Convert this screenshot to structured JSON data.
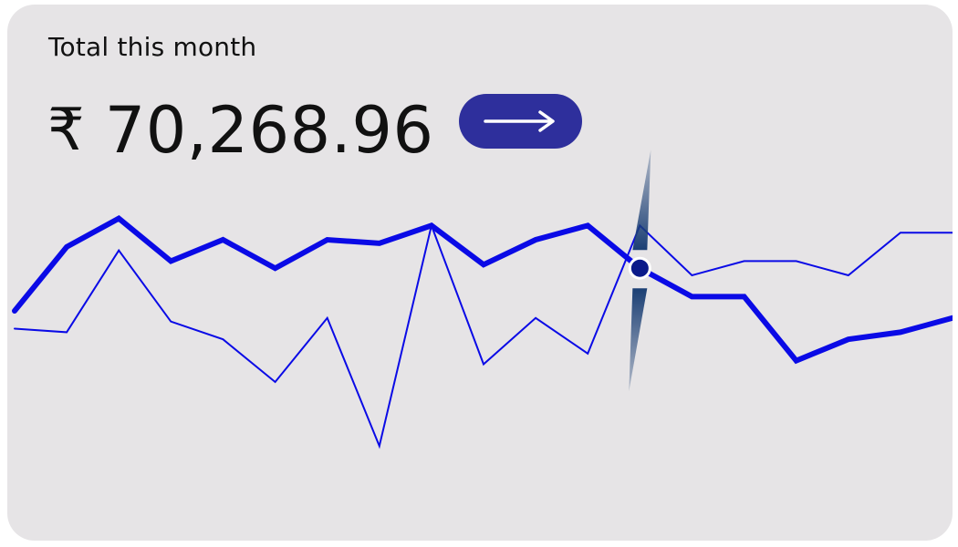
{
  "card": {
    "caption": "Total this month",
    "currency_symbol": "₹",
    "amount": "70,268.96"
  },
  "actions": {
    "next_icon": "arrow-right-icon"
  },
  "colors": {
    "card_background": "#e6e4e6",
    "line": "#0a0ae6",
    "button": "#2e2f9c",
    "marker": "#0a1a8a",
    "indicator": "#1b3f74"
  },
  "chart_data": {
    "type": "line",
    "grid": false,
    "axes_visible": false,
    "ylim": [
      0,
      1
    ],
    "highlight_index": 12,
    "series": [
      {
        "style": "thick",
        "x": [
          0,
          1,
          2,
          3,
          4,
          5,
          6,
          7,
          8,
          9,
          10,
          11,
          12,
          13,
          14,
          15,
          16,
          17,
          18
        ],
        "values": [
          0.6,
          0.78,
          0.86,
          0.74,
          0.8,
          0.72,
          0.8,
          0.79,
          0.84,
          0.73,
          0.8,
          0.84,
          0.72,
          0.64,
          0.64,
          0.46,
          0.52,
          0.54,
          0.58
        ]
      },
      {
        "style": "thin",
        "x": [
          0,
          1,
          2,
          3,
          4,
          5,
          6,
          7,
          8,
          9,
          10,
          11,
          12,
          13,
          14,
          15,
          16,
          17,
          18
        ],
        "values": [
          0.55,
          0.54,
          0.77,
          0.57,
          0.52,
          0.4,
          0.58,
          0.22,
          0.84,
          0.45,
          0.58,
          0.48,
          0.84,
          0.7,
          0.74,
          0.74,
          0.7,
          0.82,
          0.82
        ]
      }
    ]
  }
}
